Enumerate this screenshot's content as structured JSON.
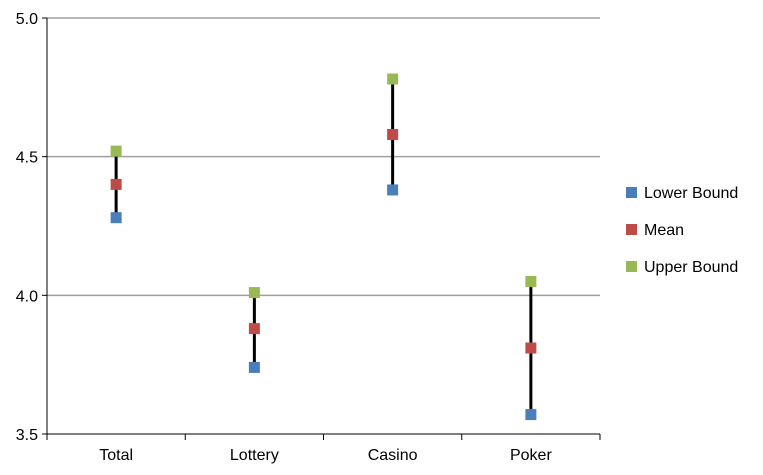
{
  "chart_data": {
    "type": "scatter",
    "title": "",
    "xlabel": "",
    "ylabel": "",
    "categories": [
      "Total",
      "Lottery",
      "Casino",
      "Poker"
    ],
    "ylim": [
      3.5,
      5.0
    ],
    "yticks": [
      "3.5",
      "4.0",
      "4.5",
      "5.0"
    ],
    "grid": true,
    "legend_position": "right",
    "series": [
      {
        "name": "Lower Bound",
        "color": "#4a7ebb",
        "values": [
          4.28,
          3.74,
          4.38,
          3.57
        ]
      },
      {
        "name": "Mean",
        "color": "#be4b48",
        "values": [
          4.4,
          3.88,
          4.58,
          3.81
        ]
      },
      {
        "name": "Upper Bound",
        "color": "#98b954",
        "values": [
          4.52,
          4.01,
          4.78,
          4.05
        ]
      }
    ],
    "range_lines": true
  }
}
